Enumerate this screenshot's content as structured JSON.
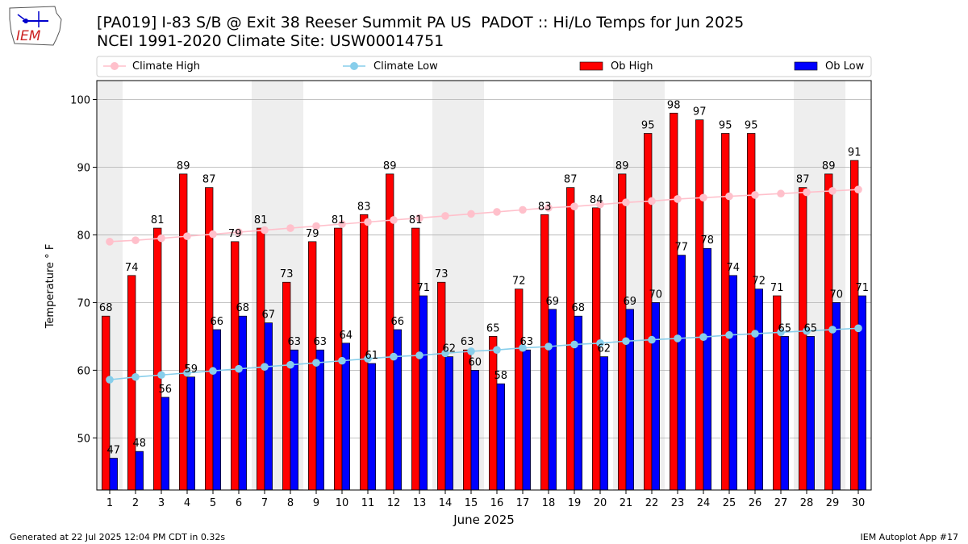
{
  "logo": {
    "text": "IEM"
  },
  "title": {
    "line1": "[PA019] I-83 S/B @ Exit 38 Reeser Summit PA US  PADOT :: Hi/Lo Temps for Jun 2025",
    "line2": "NCEI 1991-2020 Climate Site: USW00014751"
  },
  "footer": {
    "left": "Generated at 22 Jul 2025 12:04 PM CDT in 0.32s",
    "right": "IEM Autoplot App #17"
  },
  "colors": {
    "climate_high": "#ffc0cb",
    "climate_low": "#87ceeb",
    "ob_high": "#ff0000",
    "ob_low": "#0000ff",
    "weekend_band": "#eeeeee",
    "grid": "#b0b0b0"
  },
  "chart_data": {
    "type": "bar",
    "title": "Hi/Lo Temps for Jun 2025",
    "xlabel": "June 2025",
    "ylabel": "Temperature ° F",
    "ylim": [
      42.3,
      102.8
    ],
    "yticks": [
      50,
      60,
      70,
      80,
      90,
      100
    ],
    "grid": "horizontal",
    "legend_position": "top",
    "categories": [
      "1",
      "2",
      "3",
      "4",
      "5",
      "6",
      "7",
      "8",
      "9",
      "10",
      "11",
      "12",
      "13",
      "14",
      "15",
      "16",
      "17",
      "18",
      "19",
      "20",
      "21",
      "22",
      "23",
      "24",
      "25",
      "26",
      "27",
      "28",
      "29",
      "30"
    ],
    "shaded_days": [
      1,
      7,
      8,
      14,
      15,
      21,
      22,
      28,
      29
    ],
    "series": [
      {
        "name": "Ob High",
        "kind": "bar",
        "values": [
          68,
          74,
          81,
          89,
          87,
          79,
          81,
          73,
          79,
          81,
          83,
          89,
          81,
          73,
          63,
          65,
          72,
          83,
          87,
          84,
          89,
          95,
          98,
          97,
          95,
          95,
          71,
          87,
          89,
          91
        ]
      },
      {
        "name": "Ob Low",
        "kind": "bar",
        "values": [
          47,
          48,
          56,
          59,
          66,
          68,
          67,
          63,
          63,
          64,
          61,
          66,
          71,
          62,
          60,
          58,
          63,
          69,
          68,
          62,
          69,
          70,
          77,
          78,
          74,
          72,
          65,
          65,
          70,
          71
        ]
      },
      {
        "name": "Climate High",
        "kind": "line",
        "values": [
          79.0,
          79.2,
          79.5,
          79.8,
          80.1,
          80.4,
          80.7,
          81.0,
          81.3,
          81.6,
          81.9,
          82.2,
          82.5,
          82.8,
          83.1,
          83.4,
          83.7,
          84.0,
          84.2,
          84.5,
          84.8,
          85.0,
          85.3,
          85.5,
          85.7,
          85.9,
          86.1,
          86.3,
          86.5,
          86.7
        ]
      },
      {
        "name": "Climate Low",
        "kind": "line",
        "values": [
          58.6,
          59.0,
          59.3,
          59.6,
          59.9,
          60.2,
          60.5,
          60.8,
          61.1,
          61.4,
          61.7,
          62.0,
          62.2,
          62.5,
          62.8,
          63.0,
          63.3,
          63.5,
          63.8,
          64.0,
          64.3,
          64.5,
          64.7,
          64.9,
          65.2,
          65.4,
          65.6,
          65.8,
          66.0,
          66.2
        ]
      }
    ],
    "legend": [
      "Climate High",
      "Climate Low",
      "Ob High",
      "Ob Low"
    ]
  }
}
